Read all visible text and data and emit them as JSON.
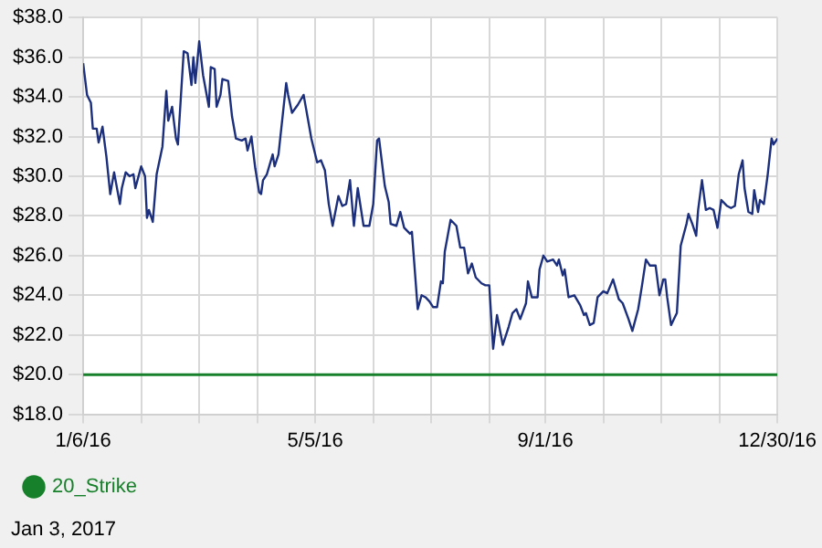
{
  "chart_data": {
    "type": "line",
    "legend": "bottom",
    "grid": true,
    "marker": "none",
    "line_style": "solid",
    "xlim": [
      "2016-01-06",
      "2016-12-30"
    ],
    "xticks": [
      {
        "value": "2016-01-06",
        "label": "1/6/16"
      },
      {
        "value": "2016-02-05",
        "label": null
      },
      {
        "value": "2016-03-06",
        "label": null
      },
      {
        "value": "2016-04-05",
        "label": null
      },
      {
        "value": "2016-05-05",
        "label": "5/5/16"
      },
      {
        "value": "2016-06-04",
        "label": null
      },
      {
        "value": "2016-07-04",
        "label": null
      },
      {
        "value": "2016-08-03",
        "label": null
      },
      {
        "value": "2016-09-01",
        "label": "9/1/16"
      },
      {
        "value": "2016-10-01",
        "label": null
      },
      {
        "value": "2016-10-31",
        "label": null
      },
      {
        "value": "2016-11-30",
        "label": null
      },
      {
        "value": "2016-12-30",
        "label": "12/30/16"
      }
    ],
    "ylim": [
      18,
      38
    ],
    "yticks": [
      {
        "value": 18,
        "label": "$18.0"
      },
      {
        "value": 20,
        "label": "$20.0"
      },
      {
        "value": 22,
        "label": "$22.0"
      },
      {
        "value": 24,
        "label": "$24.0"
      },
      {
        "value": 26,
        "label": "$26.0"
      },
      {
        "value": 28,
        "label": "$28.0"
      },
      {
        "value": 30,
        "label": "$30.0"
      },
      {
        "value": 32,
        "label": "$32.0"
      },
      {
        "value": 34,
        "label": "$34.0"
      },
      {
        "value": 36,
        "label": "$36.0"
      },
      {
        "value": 38,
        "label": "$38.0"
      }
    ],
    "ref_lines": [
      {
        "axis": "y",
        "value": 20,
        "label": "20_Strike",
        "color": "#17802a",
        "line_style": "solid"
      }
    ],
    "annotations": [
      "Jan 3, 2017"
    ],
    "series": [
      {
        "color": "#1c2f7d",
        "x": [
          "2016-01-06",
          "2016-01-08",
          "2016-01-10",
          "2016-01-11",
          "2016-01-13",
          "2016-01-14",
          "2016-01-16",
          "2016-01-18",
          "2016-01-20",
          "2016-01-22",
          "2016-01-25",
          "2016-01-26",
          "2016-01-28",
          "2016-01-30",
          "2016-02-01",
          "2016-02-02",
          "2016-02-05",
          "2016-02-07",
          "2016-02-08",
          "2016-02-09",
          "2016-02-11",
          "2016-02-13",
          "2016-02-16",
          "2016-02-18",
          "2016-02-19",
          "2016-02-21",
          "2016-02-23",
          "2016-02-24",
          "2016-02-27",
          "2016-02-29",
          "2016-03-02",
          "2016-03-03",
          "2016-03-04",
          "2016-03-06",
          "2016-03-08",
          "2016-03-11",
          "2016-03-12",
          "2016-03-14",
          "2016-03-15",
          "2016-03-17",
          "2016-03-18",
          "2016-03-21",
          "2016-03-23",
          "2016-03-25",
          "2016-03-28",
          "2016-03-30",
          "2016-03-31",
          "2016-04-02",
          "2016-04-04",
          "2016-04-06",
          "2016-04-07",
          "2016-04-08",
          "2016-04-10",
          "2016-04-13",
          "2016-04-14",
          "2016-04-16",
          "2016-04-20",
          "2016-04-21",
          "2016-04-23",
          "2016-04-26",
          "2016-04-29",
          "2016-05-01",
          "2016-05-03",
          "2016-05-06",
          "2016-05-08",
          "2016-05-10",
          "2016-05-12",
          "2016-05-14",
          "2016-05-17",
          "2016-05-19",
          "2016-05-21",
          "2016-05-23",
          "2016-05-25",
          "2016-05-27",
          "2016-05-30",
          "2016-06-02",
          "2016-06-04",
          "2016-06-06",
          "2016-06-07",
          "2016-06-10",
          "2016-06-12",
          "2016-06-13",
          "2016-06-16",
          "2016-06-18",
          "2016-06-20",
          "2016-06-23",
          "2016-06-24",
          "2016-06-27",
          "2016-06-29",
          "2016-07-01",
          "2016-07-03",
          "2016-07-05",
          "2016-07-07",
          "2016-07-09",
          "2016-07-10",
          "2016-07-11",
          "2016-07-14",
          "2016-07-17",
          "2016-07-19",
          "2016-07-21",
          "2016-07-23",
          "2016-07-25",
          "2016-07-27",
          "2016-07-30",
          "2016-08-01",
          "2016-08-03",
          "2016-08-05",
          "2016-08-07",
          "2016-08-10",
          "2016-08-13",
          "2016-08-15",
          "2016-08-17",
          "2016-08-19",
          "2016-08-22",
          "2016-08-23",
          "2016-08-25",
          "2016-08-28",
          "2016-08-29",
          "2016-08-31",
          "2016-09-02",
          "2016-09-05",
          "2016-09-07",
          "2016-09-08",
          "2016-09-10",
          "2016-09-11",
          "2016-09-13",
          "2016-09-16",
          "2016-09-19",
          "2016-09-21",
          "2016-09-22",
          "2016-09-24",
          "2016-09-26",
          "2016-09-28",
          "2016-10-01",
          "2016-10-03",
          "2016-10-06",
          "2016-10-09",
          "2016-10-11",
          "2016-10-14",
          "2016-10-16",
          "2016-10-19",
          "2016-10-21",
          "2016-10-23",
          "2016-10-25",
          "2016-10-28",
          "2016-10-30",
          "2016-11-01",
          "2016-11-02",
          "2016-11-03",
          "2016-11-05",
          "2016-11-08",
          "2016-11-10",
          "2016-11-13",
          "2016-11-14",
          "2016-11-16",
          "2016-11-18",
          "2016-11-19",
          "2016-11-21",
          "2016-11-23",
          "2016-11-25",
          "2016-11-27",
          "2016-11-29",
          "2016-12-01",
          "2016-12-04",
          "2016-12-06",
          "2016-12-08",
          "2016-12-10",
          "2016-12-12",
          "2016-12-13",
          "2016-12-15",
          "2016-12-17",
          "2016-12-18",
          "2016-12-20",
          "2016-12-21",
          "2016-12-23",
          "2016-12-25",
          "2016-12-27",
          "2016-12-28",
          "2016-12-30"
        ],
        "values": [
          35.7,
          34.1,
          33.7,
          32.4,
          32.4,
          31.7,
          32.5,
          31.0,
          29.1,
          30.2,
          28.6,
          29.4,
          30.2,
          30.0,
          30.1,
          29.4,
          30.5,
          30.0,
          27.9,
          28.3,
          27.7,
          30.1,
          31.5,
          34.3,
          32.8,
          33.5,
          31.9,
          31.6,
          36.3,
          36.2,
          34.6,
          36.0,
          34.7,
          36.8,
          35.1,
          33.5,
          35.5,
          35.4,
          33.5,
          34.1,
          34.9,
          34.8,
          33.0,
          31.9,
          31.8,
          31.9,
          31.3,
          32.0,
          30.4,
          29.2,
          29.1,
          29.8,
          30.1,
          31.1,
          30.5,
          31.1,
          34.7,
          34.1,
          33.2,
          33.6,
          34.1,
          33.0,
          31.9,
          30.7,
          30.8,
          30.3,
          28.6,
          27.5,
          29.0,
          28.5,
          28.6,
          29.8,
          27.5,
          29.4,
          27.5,
          27.5,
          28.6,
          31.8,
          31.9,
          29.5,
          28.7,
          27.6,
          27.5,
          28.2,
          27.4,
          27.1,
          27.2,
          23.3,
          24.0,
          23.9,
          23.7,
          23.4,
          23.4,
          24.7,
          24.6,
          26.2,
          27.8,
          27.5,
          26.4,
          26.4,
          25.1,
          25.6,
          24.9,
          24.6,
          24.5,
          24.5,
          21.3,
          23.0,
          21.5,
          22.4,
          23.1,
          23.3,
          22.8,
          23.6,
          24.7,
          23.9,
          23.9,
          25.3,
          26.0,
          25.7,
          25.8,
          25.5,
          25.8,
          25.0,
          25.3,
          23.9,
          24.0,
          23.5,
          23.0,
          23.1,
          22.5,
          22.6,
          23.9,
          24.2,
          24.1,
          24.8,
          23.8,
          23.6,
          22.8,
          22.2,
          23.3,
          24.5,
          25.8,
          25.5,
          25.5,
          24.0,
          24.8,
          24.8,
          23.9,
          22.5,
          23.1,
          26.5,
          27.6,
          28.1,
          27.6,
          27.0,
          28.3,
          29.8,
          28.3,
          28.4,
          28.3,
          27.4,
          28.8,
          28.5,
          28.4,
          28.5,
          30.1,
          30.8,
          29.4,
          28.2,
          28.1,
          29.3,
          28.2,
          28.8,
          28.6,
          30.1,
          31.9,
          31.6,
          31.9
        ]
      }
    ]
  }
}
